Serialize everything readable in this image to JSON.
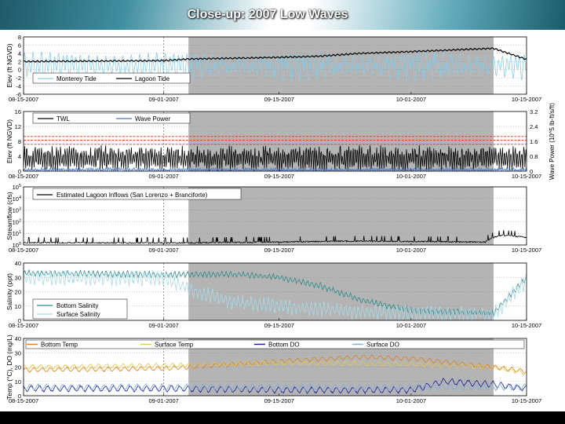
{
  "slide": {
    "title": "Close-up: 2007 Low Waves"
  },
  "chart_data": [
    {
      "type": "line",
      "panel": "elevation",
      "ylabel": "Elev (ft NGVD)",
      "xlim": [
        "2007-08-15",
        "2007-10-15"
      ],
      "x_tick_labels": [
        "08-15-2007",
        "09-01-2007",
        "09-15-2007",
        "10-01-2007",
        "10-15-2007"
      ],
      "ylim": [
        -6,
        8
      ],
      "y_tick_labels": [
        "8",
        "6",
        "4",
        "2",
        "0",
        "-2",
        "-4",
        "-6"
      ],
      "shaded_period": [
        "2007-09-04",
        "2007-10-11"
      ],
      "legend": [
        "Monterey Tide",
        "Lagoon Tide"
      ],
      "legend_position": "bottom-left",
      "series": [
        {
          "name": "Monterey Tide",
          "color": "#87cdea",
          "x": [
            "2007-08-15",
            "2007-10-15"
          ],
          "tidal_range": [
            -3.0,
            5.0
          ]
        },
        {
          "name": "Lagoon Tide",
          "color": "#000000",
          "x": [
            "2007-08-15",
            "2007-09-01",
            "2007-09-04",
            "2007-09-15",
            "2007-09-20",
            "2007-09-25",
            "2007-10-01",
            "2007-10-07",
            "2007-10-11",
            "2007-10-15"
          ],
          "y": [
            2.0,
            2.2,
            2.6,
            3.0,
            3.3,
            4.0,
            4.4,
            4.9,
            5.2,
            2.5
          ]
        }
      ]
    },
    {
      "type": "line",
      "panel": "waves",
      "ylabel": "Elev (ft NGVD)",
      "y2label": "Wave Power (10^5 lb-ft/s/ft)",
      "xlim": [
        "2007-08-15",
        "2007-10-15"
      ],
      "x_tick_labels": [
        "08-15-2007",
        "09-01-2007",
        "09-15-2007",
        "10-01-2007",
        "10-15-2007"
      ],
      "ylim": [
        0,
        16
      ],
      "y_tick_labels": [
        "16",
        "12",
        "8",
        "4",
        "0"
      ],
      "y2lim": [
        0,
        3.2
      ],
      "y2_tick_labels": [
        "3.2",
        "2.4",
        "1.6",
        "0.8",
        "0"
      ],
      "shaded_period": [
        "2007-09-04",
        "2007-10-11"
      ],
      "reference_lines": [
        9.3,
        8.3,
        7.2
      ],
      "legend": [
        "TWL",
        "Wave Power"
      ],
      "legend_position": "top-left",
      "series": [
        {
          "name": "TWL",
          "color": "#000000",
          "x": [
            "2007-08-15",
            "2007-10-15"
          ],
          "range": [
            0,
            7
          ]
        },
        {
          "name": "Wave Power",
          "color": "#4a78c8",
          "x": [
            "2007-08-15",
            "2007-10-15"
          ],
          "range": [
            0,
            0.2
          ]
        }
      ]
    },
    {
      "type": "line",
      "panel": "streamflow",
      "ylabel": "Streamflow (cfs)",
      "yscale": "log",
      "xlim": [
        "2007-08-15",
        "2007-10-15"
      ],
      "x_tick_labels": [
        "08-15-2007",
        "09-01-2007",
        "09-15-2007",
        "10-01-2007",
        "10-15-2007"
      ],
      "ylim": [
        1,
        100000
      ],
      "y_tick_labels": [
        "10^5",
        "10^4",
        "10^3",
        "10^2",
        "10^1",
        "10^0"
      ],
      "shaded_period": [
        "2007-09-04",
        "2007-10-11"
      ],
      "legend": [
        "Estimated Lagoon Inflows (San Lorenzo + Branciforte)"
      ],
      "legend_position": "top-left",
      "series": [
        {
          "name": "Estimated Lagoon Inflows (San Lorenzo + Branciforte)",
          "color": "#000000",
          "x": [
            "2007-08-15",
            "2007-09-01",
            "2007-09-15",
            "2007-09-25",
            "2007-10-01",
            "2007-10-10",
            "2007-10-12",
            "2007-10-15"
          ],
          "y": [
            1.6,
            1.5,
            1.8,
            2.2,
            2.0,
            1.8,
            7.0,
            4.5
          ]
        }
      ]
    },
    {
      "type": "line",
      "panel": "salinity",
      "ylabel": "Salinity (ppt)",
      "xlim": [
        "2007-08-15",
        "2007-10-15"
      ],
      "x_tick_labels": [
        "08-15-2007",
        "09-01-2007",
        "09-15-2007",
        "10-01-2007",
        "10-15-2007"
      ],
      "ylim": [
        0,
        40
      ],
      "y_tick_labels": [
        "40",
        "30",
        "20",
        "10",
        "0"
      ],
      "shaded_period": [
        "2007-09-04",
        "2007-10-11"
      ],
      "legend": [
        "Bottom Salinity",
        "Surface Salinity"
      ],
      "legend_position": "bottom-left",
      "series": [
        {
          "name": "Bottom Salinity",
          "color": "#2a8a8a",
          "x": [
            "2007-08-15",
            "2007-09-01",
            "2007-09-10",
            "2007-09-15",
            "2007-09-20",
            "2007-09-25",
            "2007-10-01",
            "2007-10-05",
            "2007-10-11",
            "2007-10-15"
          ],
          "y": [
            33,
            32,
            32,
            30,
            24,
            14,
            7,
            6,
            5,
            30
          ]
        },
        {
          "name": "Surface Salinity",
          "color": "#a8dbe9",
          "x": [
            "2007-08-15",
            "2007-09-01",
            "2007-09-05",
            "2007-09-10",
            "2007-09-15",
            "2007-09-20",
            "2007-09-25",
            "2007-10-01",
            "2007-10-11",
            "2007-10-15"
          ],
          "y": [
            30,
            29,
            20,
            12,
            10,
            8,
            6,
            5,
            4,
            28
          ]
        }
      ]
    },
    {
      "type": "line",
      "panel": "temperature-do",
      "ylabel": "Temp (°C), DO (mg/L)",
      "xlim": [
        "2007-08-15",
        "2007-10-15"
      ],
      "x_tick_labels": [
        "08-15-2007",
        "09-01-2007",
        "09-15-2007",
        "10-01-2007",
        "10-15-2007"
      ],
      "ylim": [
        0,
        40
      ],
      "y_tick_labels": [
        "40",
        "30",
        "20",
        "10",
        "0"
      ],
      "shaded_period": [
        "2007-09-04",
        "2007-10-11"
      ],
      "legend": [
        "Bottom Temp",
        "Surface Temp",
        "Bottom DO",
        "Surface DO"
      ],
      "legend_position": "top",
      "series": [
        {
          "name": "Bottom Temp",
          "color": "#e08020",
          "x": [
            "2007-08-15",
            "2007-09-01",
            "2007-09-15",
            "2007-09-25",
            "2007-10-01",
            "2007-10-11",
            "2007-10-15"
          ],
          "y": [
            18,
            19,
            24,
            27,
            26,
            20,
            17
          ]
        },
        {
          "name": "Surface Temp",
          "color": "#e8c840",
          "x": [
            "2007-08-15",
            "2007-09-01",
            "2007-09-15",
            "2007-10-01",
            "2007-10-11",
            "2007-10-15"
          ],
          "y": [
            20,
            21,
            23,
            22,
            20,
            16
          ]
        },
        {
          "name": "Bottom DO",
          "color": "#1a1a9a",
          "x": [
            "2007-08-15",
            "2007-09-01",
            "2007-09-15",
            "2007-10-01",
            "2007-10-05",
            "2007-10-11",
            "2007-10-15"
          ],
          "y": [
            5,
            5,
            4,
            4,
            10,
            8,
            5
          ]
        },
        {
          "name": "Surface DO",
          "color": "#7ab0e0",
          "x": [
            "2007-08-15",
            "2007-10-15"
          ],
          "y": [
            6,
            6
          ]
        }
      ]
    }
  ]
}
